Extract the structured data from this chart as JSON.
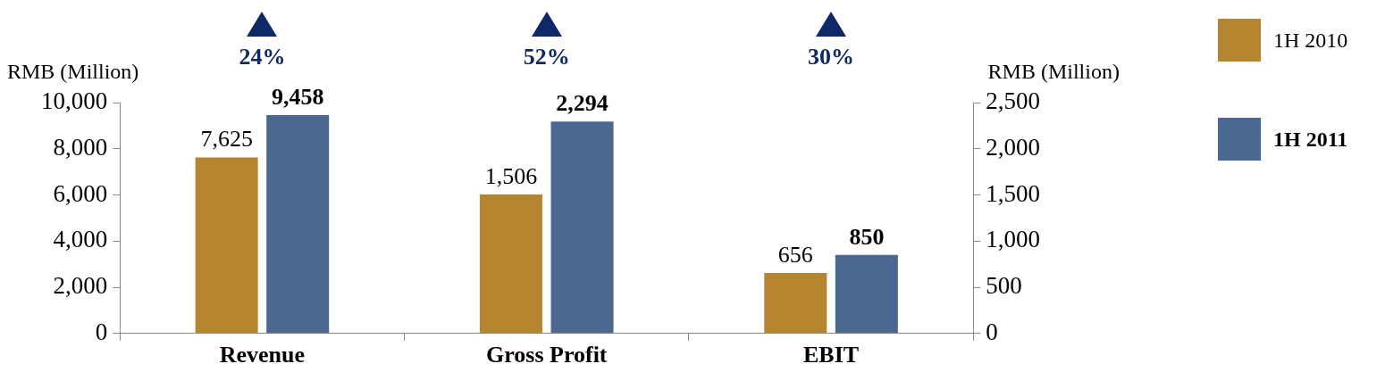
{
  "chart_data": {
    "type": "bar",
    "ylabel": "RMB (Million)",
    "y2label": "RMB (Million)",
    "categories": [
      "Revenue",
      "Gross Profit",
      "EBIT"
    ],
    "series": [
      {
        "name": "1H 2010",
        "color": "#b5862f",
        "values": [
          7625,
          null,
          null
        ],
        "value_labels": [
          "7,625",
          null,
          null
        ]
      },
      {
        "name": "1H 2011",
        "color": "#4a6890",
        "values": [
          9458,
          null,
          null
        ],
        "value_labels": [
          "9,458",
          null,
          null
        ]
      },
      {
        "color": "#b5862f",
        "axis": "y2",
        "values": [
          null,
          1506,
          656
        ],
        "value_labels": [
          null,
          "1,506",
          "656"
        ]
      },
      {
        "color": "#4a6890",
        "axis": "y2",
        "values": [
          null,
          2294,
          850
        ],
        "value_labels": [
          null,
          "2,294",
          "850"
        ]
      }
    ],
    "ylim": [
      0,
      10000
    ],
    "yticks": [
      {
        "value": 0,
        "label": "0"
      },
      {
        "value": 2000,
        "label": "2,000"
      },
      {
        "value": 4000,
        "label": "4,000"
      },
      {
        "value": 6000,
        "label": "6,000"
      },
      {
        "value": 8000,
        "label": "8,000"
      },
      {
        "value": 10000,
        "label": "10,000"
      }
    ],
    "y2lim": [
      0,
      2500
    ],
    "y2ticks": [
      {
        "value": 0,
        "label": "0"
      },
      {
        "value": 500,
        "label": "500"
      },
      {
        "value": 1000,
        "label": "1,000"
      },
      {
        "value": 1500,
        "label": "1,500"
      },
      {
        "value": 2000,
        "label": "2,000"
      },
      {
        "value": 2500,
        "label": "2,500"
      }
    ],
    "grid": false,
    "legend": "right",
    "annotations": [
      "24%",
      "52%",
      "30%"
    ]
  }
}
